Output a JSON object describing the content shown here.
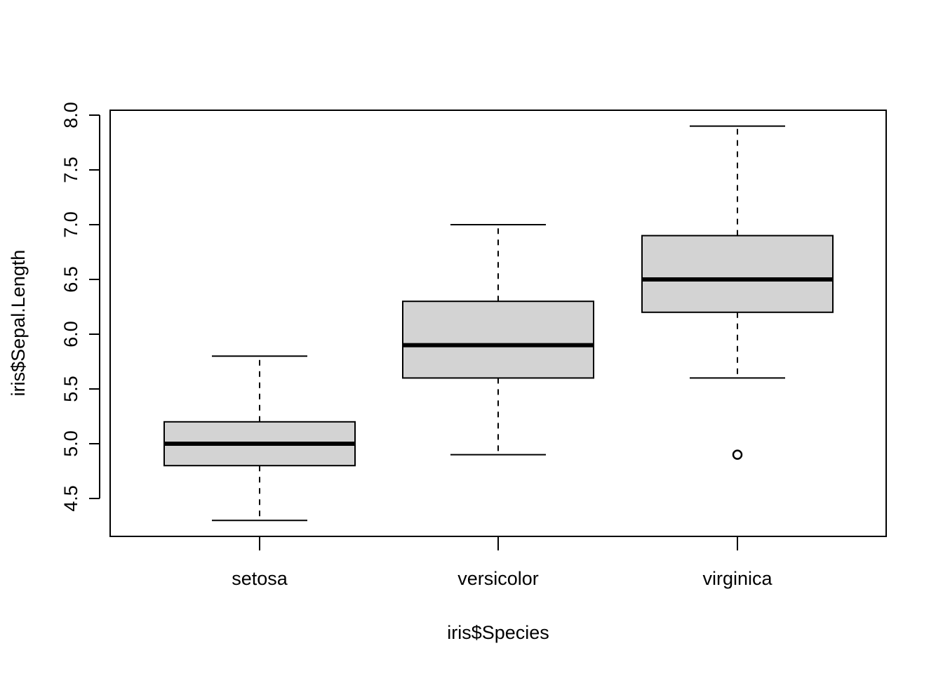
{
  "chart_data": {
    "type": "boxplot",
    "title": "",
    "xlabel": "iris$Species",
    "ylabel": "iris$Sepal.Length",
    "ylim": [
      4.2,
      8.05
    ],
    "yticks": [
      "4.5",
      "5.0",
      "5.5",
      "6.0",
      "6.5",
      "7.0",
      "7.5",
      "8.0"
    ],
    "grid": false,
    "box_fill": "#d3d3d3",
    "stroke": "#000000",
    "categories": [
      "setosa",
      "versicolor",
      "virginica"
    ],
    "boxes": [
      {
        "category": "setosa",
        "whisker_low": 4.3,
        "q1": 4.8,
        "median": 5.0,
        "q3": 5.2,
        "whisker_high": 5.8,
        "outliers": []
      },
      {
        "category": "versicolor",
        "whisker_low": 4.9,
        "q1": 5.6,
        "median": 5.9,
        "q3": 6.3,
        "whisker_high": 7.0,
        "outliers": []
      },
      {
        "category": "virginica",
        "whisker_low": 5.6,
        "q1": 6.2,
        "median": 6.5,
        "q3": 6.9,
        "whisker_high": 7.9,
        "outliers": [
          4.9
        ]
      }
    ]
  }
}
